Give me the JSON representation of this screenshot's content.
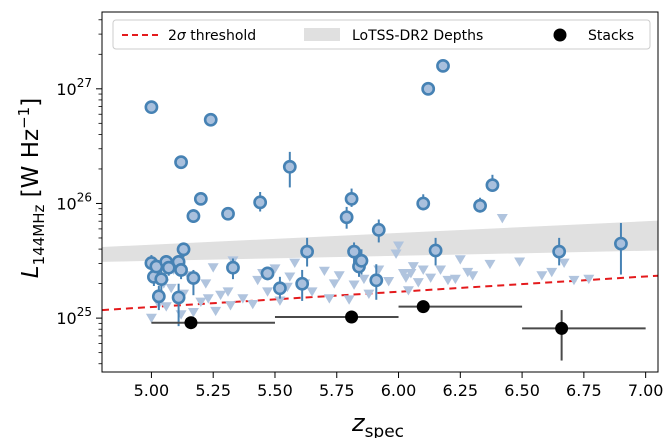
{
  "chart_data": {
    "type": "scatter",
    "xlabel": "z",
    "xlabel_sub": "spec",
    "ylabel": "L",
    "ylabel_sub": "144MHz",
    "ylabel_unit": "[W Hz",
    "ylabel_unit_sup": "−1",
    "ylabel_unit_close": "]",
    "xlim": [
      4.8,
      7.05
    ],
    "ylim_log10": [
      24.53,
      27.67
    ],
    "yscale": "log",
    "x_ticks": [
      {
        "v": 5.0,
        "label": "5.00"
      },
      {
        "v": 5.25,
        "label": "5.25"
      },
      {
        "v": 5.5,
        "label": "5.50"
      },
      {
        "v": 5.75,
        "label": "5.75"
      },
      {
        "v": 6.0,
        "label": "6.00"
      },
      {
        "v": 6.25,
        "label": "6.25"
      },
      {
        "v": 6.5,
        "label": "6.50"
      },
      {
        "v": 6.75,
        "label": "6.75"
      },
      {
        "v": 7.0,
        "label": "7.00"
      }
    ],
    "y_ticks": [
      {
        "v": 25,
        "base": "10",
        "exp": "25"
      },
      {
        "v": 26,
        "base": "10",
        "exp": "26"
      },
      {
        "v": 27,
        "base": "10",
        "exp": "27"
      }
    ],
    "legend": {
      "placement": "top",
      "threshold_pre": "2",
      "threshold_sym": "σ",
      "threshold_post": " threshold",
      "depths": "LoTSS-DR2 Depths",
      "stacks": "Stacks"
    },
    "colors": {
      "detection_fill": "#a9c0dd",
      "detection_edge": "#4682b4",
      "upper_limit": "#b0c4de",
      "threshold": "#e41a1c",
      "band": "#e0e0e0",
      "stack": "#000000",
      "stack_err": "#4a4a4a"
    },
    "threshold_line": [
      {
        "x": 4.8,
        "y": 25.07
      },
      {
        "x": 7.05,
        "y": 25.37
      }
    ],
    "depth_band": [
      {
        "x": 4.8,
        "lo": 25.49,
        "hi": 25.62
      },
      {
        "x": 7.05,
        "lo": 25.59,
        "hi": 25.85
      }
    ],
    "detections": [
      {
        "x": 5.0,
        "y": 26.84,
        "lo": 26.8,
        "hi": 26.87
      },
      {
        "x": 5.0,
        "y": 25.48,
        "lo": 25.41,
        "hi": 25.55
      },
      {
        "x": 5.01,
        "y": 25.36,
        "lo": 25.28,
        "hi": 25.42
      },
      {
        "x": 5.02,
        "y": 25.45,
        "lo": 25.38,
        "hi": 25.5
      },
      {
        "x": 5.03,
        "y": 25.19,
        "lo": 25.07,
        "hi": 25.28
      },
      {
        "x": 5.04,
        "y": 25.34,
        "lo": 25.24,
        "hi": 25.42
      },
      {
        "x": 5.06,
        "y": 25.49,
        "lo": 25.43,
        "hi": 25.55
      },
      {
        "x": 5.07,
        "y": 25.44,
        "lo": 25.37,
        "hi": 25.5
      },
      {
        "x": 5.11,
        "y": 25.18,
        "lo": 24.93,
        "hi": 25.3
      },
      {
        "x": 5.11,
        "y": 25.49,
        "lo": 25.43,
        "hi": 25.55
      },
      {
        "x": 5.12,
        "y": 26.36,
        "lo": 26.33,
        "hi": 26.39
      },
      {
        "x": 5.12,
        "y": 25.42,
        "lo": 25.34,
        "hi": 25.5
      },
      {
        "x": 5.13,
        "y": 25.6,
        "lo": 25.53,
        "hi": 25.66
      },
      {
        "x": 5.17,
        "y": 25.89,
        "lo": 25.83,
        "hi": 25.95
      },
      {
        "x": 5.17,
        "y": 25.35,
        "lo": 25.2,
        "hi": 25.42
      },
      {
        "x": 5.2,
        "y": 26.04,
        "lo": 26.0,
        "hi": 26.08
      },
      {
        "x": 5.24,
        "y": 26.73,
        "lo": 26.69,
        "hi": 26.77
      },
      {
        "x": 5.31,
        "y": 25.91,
        "lo": 25.88,
        "hi": 25.94
      },
      {
        "x": 5.33,
        "y": 25.44,
        "lo": 25.34,
        "hi": 25.52
      },
      {
        "x": 5.44,
        "y": 26.01,
        "lo": 25.93,
        "hi": 26.1
      },
      {
        "x": 5.47,
        "y": 25.39,
        "lo": 25.33,
        "hi": 25.45
      },
      {
        "x": 5.52,
        "y": 25.26,
        "lo": 25.17,
        "hi": 25.36
      },
      {
        "x": 5.56,
        "y": 26.32,
        "lo": 26.14,
        "hi": 26.45
      },
      {
        "x": 5.61,
        "y": 25.3,
        "lo": 25.15,
        "hi": 25.42
      },
      {
        "x": 5.63,
        "y": 25.58,
        "lo": 25.45,
        "hi": 25.7
      },
      {
        "x": 5.79,
        "y": 25.88,
        "lo": 25.78,
        "hi": 25.97
      },
      {
        "x": 5.81,
        "y": 26.04,
        "lo": 25.97,
        "hi": 26.13
      },
      {
        "x": 5.82,
        "y": 25.58,
        "lo": 25.47,
        "hi": 25.66
      },
      {
        "x": 5.84,
        "y": 25.45,
        "lo": 25.36,
        "hi": 25.54
      },
      {
        "x": 5.85,
        "y": 25.5,
        "lo": 25.38,
        "hi": 25.6
      },
      {
        "x": 5.91,
        "y": 25.33,
        "lo": 25.16,
        "hi": 25.47
      },
      {
        "x": 5.92,
        "y": 25.77,
        "lo": 25.66,
        "hi": 25.86
      },
      {
        "x": 6.1,
        "y": 26.0,
        "lo": 25.94,
        "hi": 26.08
      },
      {
        "x": 6.12,
        "y": 27.0,
        "lo": 26.98,
        "hi": 27.02
      },
      {
        "x": 6.15,
        "y": 25.59,
        "lo": 25.46,
        "hi": 25.7
      },
      {
        "x": 6.18,
        "y": 27.2,
        "lo": 27.18,
        "hi": 27.22
      },
      {
        "x": 6.33,
        "y": 25.98,
        "lo": 25.92,
        "hi": 26.05
      },
      {
        "x": 6.38,
        "y": 26.16,
        "lo": 26.12,
        "hi": 26.25
      },
      {
        "x": 6.65,
        "y": 25.58,
        "lo": 25.46,
        "hi": 25.7
      },
      {
        "x": 6.9,
        "y": 25.65,
        "lo": 25.38,
        "hi": 25.83
      }
    ],
    "upper_limits": [
      {
        "x": 5.0,
        "y": 25.0
      },
      {
        "x": 5.01,
        "y": 25.34
      },
      {
        "x": 5.03,
        "y": 25.12
      },
      {
        "x": 5.05,
        "y": 25.3
      },
      {
        "x": 5.06,
        "y": 25.1
      },
      {
        "x": 5.08,
        "y": 25.26
      },
      {
        "x": 5.09,
        "y": 25.42
      },
      {
        "x": 5.12,
        "y": 25.03
      },
      {
        "x": 5.13,
        "y": 25.21
      },
      {
        "x": 5.15,
        "y": 25.37
      },
      {
        "x": 5.17,
        "y": 25.05
      },
      {
        "x": 5.2,
        "y": 25.14
      },
      {
        "x": 5.22,
        "y": 25.3
      },
      {
        "x": 5.23,
        "y": 25.17
      },
      {
        "x": 5.25,
        "y": 25.44
      },
      {
        "x": 5.26,
        "y": 25.06
      },
      {
        "x": 5.28,
        "y": 25.2
      },
      {
        "x": 5.31,
        "y": 25.23
      },
      {
        "x": 5.32,
        "y": 25.11
      },
      {
        "x": 5.33,
        "y": 25.5
      },
      {
        "x": 5.37,
        "y": 25.17
      },
      {
        "x": 5.41,
        "y": 25.12
      },
      {
        "x": 5.43,
        "y": 25.33
      },
      {
        "x": 5.45,
        "y": 25.39
      },
      {
        "x": 5.47,
        "y": 25.23
      },
      {
        "x": 5.5,
        "y": 25.43
      },
      {
        "x": 5.52,
        "y": 25.15
      },
      {
        "x": 5.55,
        "y": 25.27
      },
      {
        "x": 5.56,
        "y": 25.36
      },
      {
        "x": 5.58,
        "y": 25.48
      },
      {
        "x": 5.62,
        "y": 25.3
      },
      {
        "x": 5.65,
        "y": 25.23
      },
      {
        "x": 5.7,
        "y": 25.41
      },
      {
        "x": 5.72,
        "y": 25.17
      },
      {
        "x": 5.74,
        "y": 25.3
      },
      {
        "x": 5.76,
        "y": 25.37
      },
      {
        "x": 5.8,
        "y": 25.16
      },
      {
        "x": 5.82,
        "y": 25.29
      },
      {
        "x": 5.84,
        "y": 25.52
      },
      {
        "x": 5.86,
        "y": 25.34
      },
      {
        "x": 5.88,
        "y": 25.21
      },
      {
        "x": 5.92,
        "y": 25.42
      },
      {
        "x": 5.96,
        "y": 25.32
      },
      {
        "x": 5.99,
        "y": 25.56
      },
      {
        "x": 6.0,
        "y": 25.63
      },
      {
        "x": 6.02,
        "y": 25.39
      },
      {
        "x": 6.03,
        "y": 25.35
      },
      {
        "x": 6.04,
        "y": 25.24
      },
      {
        "x": 6.05,
        "y": 25.39
      },
      {
        "x": 6.06,
        "y": 25.45
      },
      {
        "x": 6.08,
        "y": 25.31
      },
      {
        "x": 6.1,
        "y": 25.42
      },
      {
        "x": 6.13,
        "y": 25.35
      },
      {
        "x": 6.17,
        "y": 25.42
      },
      {
        "x": 6.2,
        "y": 25.33
      },
      {
        "x": 6.23,
        "y": 25.34
      },
      {
        "x": 6.25,
        "y": 25.51
      },
      {
        "x": 6.28,
        "y": 25.4
      },
      {
        "x": 6.3,
        "y": 25.37
      },
      {
        "x": 6.37,
        "y": 25.47
      },
      {
        "x": 6.42,
        "y": 25.87
      },
      {
        "x": 6.49,
        "y": 25.49
      },
      {
        "x": 6.58,
        "y": 25.37
      },
      {
        "x": 6.62,
        "y": 25.4
      },
      {
        "x": 6.67,
        "y": 25.48
      },
      {
        "x": 6.71,
        "y": 25.33
      },
      {
        "x": 6.77,
        "y": 25.34
      }
    ],
    "stacks": [
      {
        "x": 5.16,
        "xlo": 5.0,
        "xhi": 5.5,
        "y": 24.96,
        "lo": 24.96,
        "hi": 24.96
      },
      {
        "x": 5.81,
        "xlo": 5.5,
        "xhi": 6.0,
        "y": 25.01,
        "lo": 25.01,
        "hi": 25.01
      },
      {
        "x": 6.1,
        "xlo": 6.0,
        "xhi": 6.5,
        "y": 25.1,
        "lo": 25.1,
        "hi": 25.1
      },
      {
        "x": 6.66,
        "xlo": 6.5,
        "xhi": 7.0,
        "y": 24.91,
        "lo": 24.63,
        "hi": 25.07
      }
    ]
  }
}
